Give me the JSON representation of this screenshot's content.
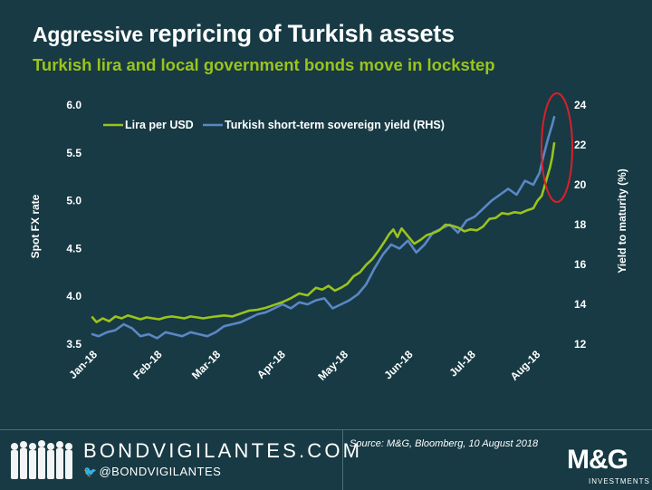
{
  "header": {
    "title_part1": "Aggressive ",
    "title_part2": "repricing of Turkish assets",
    "subtitle": "Turkish lira and local government bonds move in lockstep"
  },
  "footer": {
    "brand": "BONDVIGILANTES.COM",
    "handle": "@BONDVIGILANTES",
    "source": "Source: M&G, Bloomberg, 10 August 2018",
    "logo_text": "M&G",
    "logo_sub": "INVESTMENTS"
  },
  "colors": {
    "background": "#173a44",
    "lira": "#9bc31c",
    "yield": "#5b87c4",
    "highlight": "#d8202a",
    "text": "#ffffff"
  },
  "chart_data": {
    "type": "line",
    "ylabel": "Spot FX rate",
    "y2label": "Yield to maturity (%)",
    "ylim": [
      3.5,
      6.0
    ],
    "y2lim": [
      12,
      24
    ],
    "yticks": [
      "6.0",
      "5.5",
      "5.0",
      "4.5",
      "4.0",
      "3.5"
    ],
    "y2ticks": [
      "24",
      "22",
      "20",
      "18",
      "16",
      "14",
      "12"
    ],
    "xtick_labels": [
      "Jan-18",
      "Feb-18",
      "Mar-18",
      "Apr-18",
      "May-18",
      "Jun-18",
      "Jul-18",
      "Aug-18"
    ],
    "xlim": [
      "2018-01-01",
      "2018-08-10"
    ],
    "legend_position": "top-left",
    "annotation": "red ellipse highlighting the August 2018 spike",
    "series": [
      {
        "name": "Lira per USD",
        "axis": "left",
        "color": "#9bc31c",
        "x": [
          "2018-01-01",
          "2018-01-03",
          "2018-01-06",
          "2018-01-09",
          "2018-01-12",
          "2018-01-15",
          "2018-01-18",
          "2018-01-21",
          "2018-01-24",
          "2018-01-27",
          "2018-01-30",
          "2018-02-02",
          "2018-02-05",
          "2018-02-08",
          "2018-02-11",
          "2018-02-14",
          "2018-02-17",
          "2018-02-20",
          "2018-02-23",
          "2018-02-26",
          "2018-03-01",
          "2018-03-05",
          "2018-03-09",
          "2018-03-13",
          "2018-03-17",
          "2018-03-21",
          "2018-03-25",
          "2018-03-29",
          "2018-04-02",
          "2018-04-06",
          "2018-04-10",
          "2018-04-14",
          "2018-04-18",
          "2018-04-21",
          "2018-04-24",
          "2018-04-27",
          "2018-04-30",
          "2018-05-03",
          "2018-05-06",
          "2018-05-09",
          "2018-05-12",
          "2018-05-15",
          "2018-05-18",
          "2018-05-21",
          "2018-05-23",
          "2018-05-25",
          "2018-05-27",
          "2018-05-29",
          "2018-06-01",
          "2018-06-04",
          "2018-06-07",
          "2018-06-10",
          "2018-06-13",
          "2018-06-16",
          "2018-06-19",
          "2018-06-22",
          "2018-06-25",
          "2018-06-28",
          "2018-07-01",
          "2018-07-04",
          "2018-07-07",
          "2018-07-10",
          "2018-07-13",
          "2018-07-16",
          "2018-07-19",
          "2018-07-22",
          "2018-07-25",
          "2018-07-28",
          "2018-07-31",
          "2018-08-02",
          "2018-08-04",
          "2018-08-06",
          "2018-08-08",
          "2018-08-09",
          "2018-08-10"
        ],
        "y": [
          3.78,
          3.73,
          3.77,
          3.74,
          3.79,
          3.77,
          3.8,
          3.78,
          3.76,
          3.78,
          3.77,
          3.76,
          3.78,
          3.79,
          3.78,
          3.77,
          3.79,
          3.78,
          3.77,
          3.78,
          3.79,
          3.8,
          3.79,
          3.82,
          3.85,
          3.86,
          3.88,
          3.91,
          3.94,
          3.98,
          4.03,
          4.01,
          4.09,
          4.07,
          4.11,
          4.06,
          4.09,
          4.13,
          4.21,
          4.25,
          4.33,
          4.39,
          4.48,
          4.58,
          4.65,
          4.7,
          4.62,
          4.71,
          4.63,
          4.55,
          4.59,
          4.64,
          4.66,
          4.69,
          4.75,
          4.74,
          4.72,
          4.68,
          4.7,
          4.69,
          4.73,
          4.81,
          4.82,
          4.87,
          4.86,
          4.88,
          4.87,
          4.9,
          4.92,
          5.0,
          5.05,
          5.2,
          5.35,
          5.45,
          5.6
        ]
      },
      {
        "name": "Turkish short-term sovereign yield (RHS)",
        "axis": "right",
        "color": "#5b87c4",
        "x": [
          "2018-01-01",
          "2018-01-04",
          "2018-01-08",
          "2018-01-12",
          "2018-01-16",
          "2018-01-20",
          "2018-01-24",
          "2018-01-28",
          "2018-02-01",
          "2018-02-05",
          "2018-02-09",
          "2018-02-13",
          "2018-02-17",
          "2018-02-21",
          "2018-02-25",
          "2018-03-01",
          "2018-03-05",
          "2018-03-09",
          "2018-03-13",
          "2018-03-17",
          "2018-03-21",
          "2018-03-25",
          "2018-03-29",
          "2018-04-02",
          "2018-04-06",
          "2018-04-10",
          "2018-04-14",
          "2018-04-18",
          "2018-04-22",
          "2018-04-26",
          "2018-04-30",
          "2018-05-04",
          "2018-05-08",
          "2018-05-12",
          "2018-05-16",
          "2018-05-20",
          "2018-05-24",
          "2018-05-28",
          "2018-06-01",
          "2018-06-05",
          "2018-06-09",
          "2018-06-13",
          "2018-06-17",
          "2018-06-21",
          "2018-06-25",
          "2018-06-29",
          "2018-07-03",
          "2018-07-07",
          "2018-07-11",
          "2018-07-15",
          "2018-07-19",
          "2018-07-23",
          "2018-07-27",
          "2018-07-31",
          "2018-08-03",
          "2018-08-05",
          "2018-08-07",
          "2018-08-09",
          "2018-08-10"
        ],
        "y": [
          12.5,
          12.4,
          12.6,
          12.7,
          13.0,
          12.8,
          12.4,
          12.5,
          12.3,
          12.6,
          12.5,
          12.4,
          12.6,
          12.5,
          12.4,
          12.6,
          12.9,
          13.0,
          13.1,
          13.3,
          13.5,
          13.6,
          13.8,
          14.0,
          13.8,
          14.1,
          14.0,
          14.2,
          14.3,
          13.8,
          14.0,
          14.2,
          14.5,
          15.0,
          15.8,
          16.5,
          17.0,
          16.8,
          17.2,
          16.6,
          17.0,
          17.6,
          17.8,
          18.0,
          17.6,
          18.2,
          18.4,
          18.8,
          19.2,
          19.5,
          19.8,
          19.5,
          20.2,
          20.0,
          20.6,
          21.5,
          22.3,
          23.0,
          23.4
        ]
      }
    ]
  }
}
